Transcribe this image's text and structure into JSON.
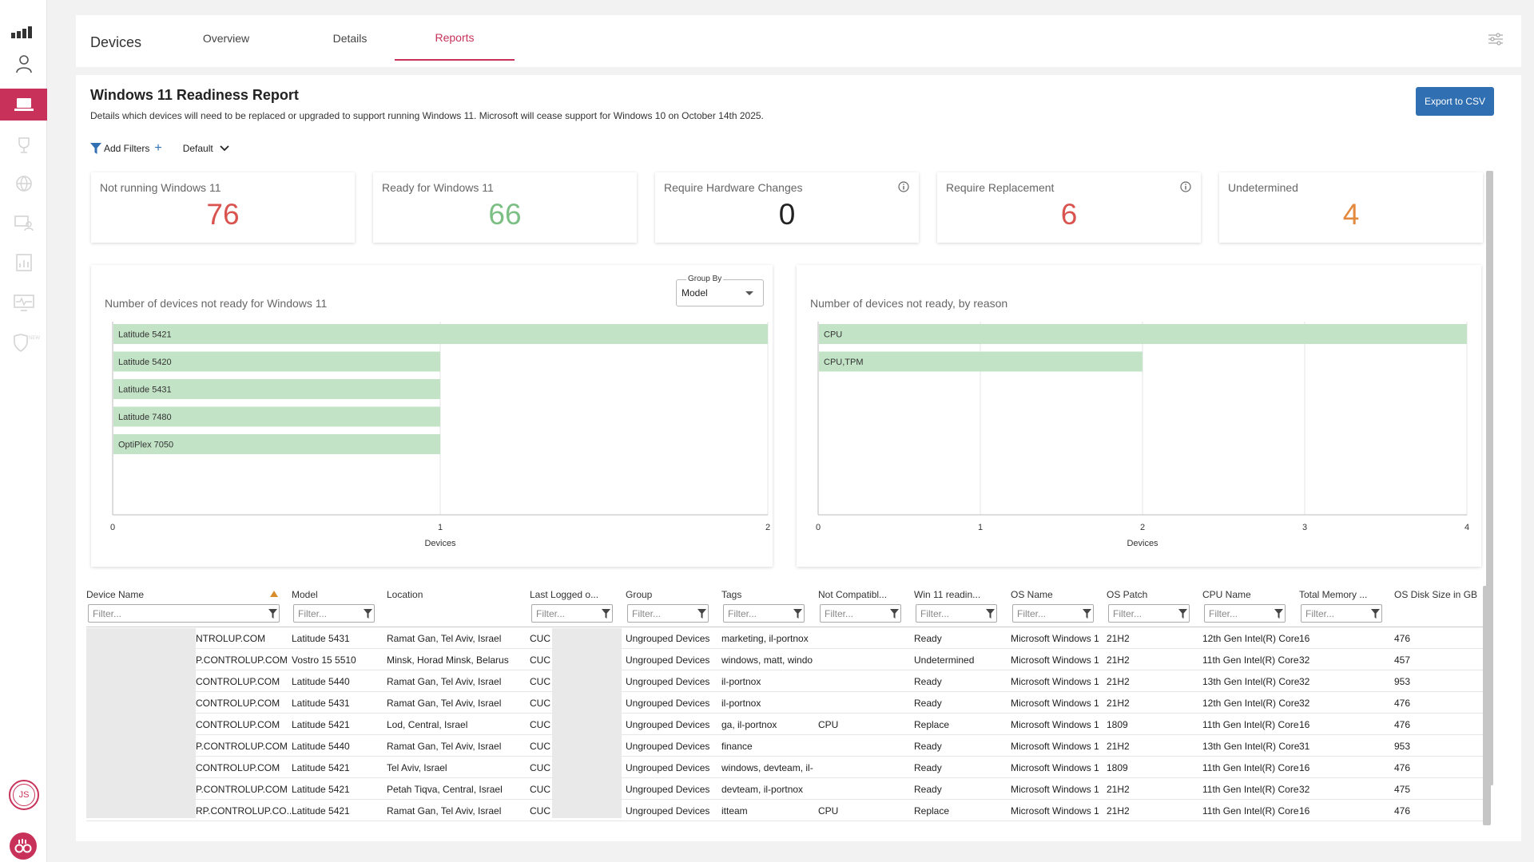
{
  "sidebar": {
    "items": [
      {
        "icon": "signal-bars-icon",
        "active": false
      },
      {
        "icon": "user-icon",
        "active": false
      },
      {
        "icon": "laptop-icon",
        "active": true
      },
      {
        "icon": "trophy-icon",
        "active": false
      },
      {
        "icon": "globe-icon",
        "active": false
      },
      {
        "icon": "device-user-icon",
        "active": false
      },
      {
        "icon": "report-icon",
        "active": false
      },
      {
        "icon": "monitor-pulse-icon",
        "active": false
      },
      {
        "icon": "shield-new-icon",
        "active": false
      }
    ],
    "avatar_initials": "JS",
    "accent": "#c8325a"
  },
  "header": {
    "title": "Devices",
    "tabs": [
      {
        "label": "Overview",
        "active": false
      },
      {
        "label": "Details",
        "active": false
      },
      {
        "label": "Reports",
        "active": true
      }
    ]
  },
  "report": {
    "title": "Windows 11 Readiness Report",
    "description": "Details which devices will need to be replaced or upgraded to support running Windows 11. Microsoft will cease support for Windows 10 on October 14th 2025.",
    "export_label": "Export to CSV",
    "add_filters_label": "Add Filters",
    "view_label": "Default"
  },
  "kpis": [
    {
      "label": "Not running Windows 11",
      "value": "76",
      "color": "#d9534f"
    },
    {
      "label": "Ready for Windows 11",
      "value": "66",
      "color": "#7cbf84"
    },
    {
      "label": "Require Hardware Changes",
      "value": "0",
      "color": "#222222"
    },
    {
      "label": "Require Replacement",
      "value": "6",
      "color": "#d9534f"
    },
    {
      "label": "Undetermined",
      "value": "4",
      "color": "#e38a3f"
    }
  ],
  "chart_data": [
    {
      "type": "bar",
      "orientation": "horizontal",
      "title": "Number of devices not ready for Windows 11",
      "group_by_label": "Group By",
      "group_by_value": "Model",
      "categories": [
        "Latitude 5421",
        "Latitude 5420",
        "Latitude 5431",
        "Latitude 7480",
        "OptiPlex 7050"
      ],
      "values": [
        2,
        1,
        1,
        1,
        1
      ],
      "xlabel": "Devices",
      "xlim": [
        0,
        2
      ],
      "ticks": [
        "0",
        "1",
        "2"
      ],
      "bar_color": "#c3e3c6"
    },
    {
      "type": "bar",
      "orientation": "horizontal",
      "title": "Number of devices not ready, by reason",
      "categories": [
        "CPU",
        "CPU,TPM"
      ],
      "values": [
        4,
        2
      ],
      "xlabel": "Devices",
      "xlim": [
        0,
        4
      ],
      "ticks": [
        "0",
        "1",
        "2",
        "3",
        "4"
      ],
      "bar_color": "#c3e3c6"
    }
  ],
  "table": {
    "filter_placeholder": "Filter...",
    "columns": [
      "Device Name",
      "Model",
      "Location",
      "Last Logged o...",
      "Group",
      "Tags",
      "Not Compatibl...",
      "Win 11 readin...",
      "OS Name",
      "OS Patch",
      "CPU Name",
      "Total Memory ...",
      "OS Disk Size in GB"
    ],
    "rows": [
      [
        "NTROLUP.COM",
        "Latitude 5431",
        "Ramat Gan, Tel Aviv, Israel",
        "CUC",
        "Ungrouped Devices",
        "marketing, il-portnox",
        "",
        "Ready",
        "Microsoft Windows 1",
        "21H2",
        "12th Gen Intel(R) Core",
        "16",
        "476"
      ],
      [
        "P.CONTROLUP.COM",
        "Vostro 15 5510",
        "Minsk, Horad Minsk, Belarus",
        "CUC",
        "Ungrouped Devices",
        "windows, matt, windo",
        "",
        "Undetermined",
        "Microsoft Windows 1",
        "21H2",
        "11th Gen Intel(R) Core",
        "32",
        "457"
      ],
      [
        "CONTROLUP.COM",
        "Latitude 5440",
        "Ramat Gan, Tel Aviv, Israel",
        "CUC",
        "Ungrouped Devices",
        "il-portnox",
        "",
        "Ready",
        "Microsoft Windows 1",
        "21H2",
        "13th Gen Intel(R) Core",
        "32",
        "953"
      ],
      [
        "CONTROLUP.COM",
        "Latitude 5431",
        "Ramat Gan, Tel Aviv, Israel",
        "CUC",
        "Ungrouped Devices",
        "il-portnox",
        "",
        "Ready",
        "Microsoft Windows 1",
        "21H2",
        "12th Gen Intel(R) Core",
        "32",
        "476"
      ],
      [
        "CONTROLUP.COM",
        "Latitude 5421",
        "Lod, Central, Israel",
        "CUC",
        "Ungrouped Devices",
        "ga, il-portnox",
        "CPU",
        "Replace",
        "Microsoft Windows 1",
        "1809",
        "11th Gen Intel(R) Core",
        "16",
        "476"
      ],
      [
        "P.CONTROLUP.COM",
        "Latitude 5440",
        "Ramat Gan, Tel Aviv, Israel",
        "CUC",
        "Ungrouped Devices",
        "finance",
        "",
        "Ready",
        "Microsoft Windows 1",
        "21H2",
        "13th Gen Intel(R) Core",
        "31",
        "953"
      ],
      [
        "CONTROLUP.COM",
        "Latitude 5421",
        "Tel Aviv, Israel",
        "CUC",
        "Ungrouped Devices",
        "windows, devteam, il-",
        "",
        "Ready",
        "Microsoft Windows 1",
        "1809",
        "11th Gen Intel(R) Core",
        "16",
        "476"
      ],
      [
        "P.CONTROLUP.COM",
        "Latitude 5421",
        "Petah Tiqva, Central, Israel",
        "CUC",
        "Ungrouped Devices",
        "devteam, il-portnox",
        "",
        "Ready",
        "Microsoft Windows 1",
        "21H2",
        "11th Gen Intel(R) Core",
        "32",
        "475"
      ],
      [
        "RP.CONTROLUP.CO...",
        "Latitude 5421",
        "Ramat Gan, Tel Aviv, Israel",
        "CUC",
        "Ungrouped Devices",
        "itteam",
        "CPU",
        "Replace",
        "Microsoft Windows 1",
        "21H2",
        "11th Gen Intel(R) Core",
        "16",
        "476"
      ]
    ]
  }
}
